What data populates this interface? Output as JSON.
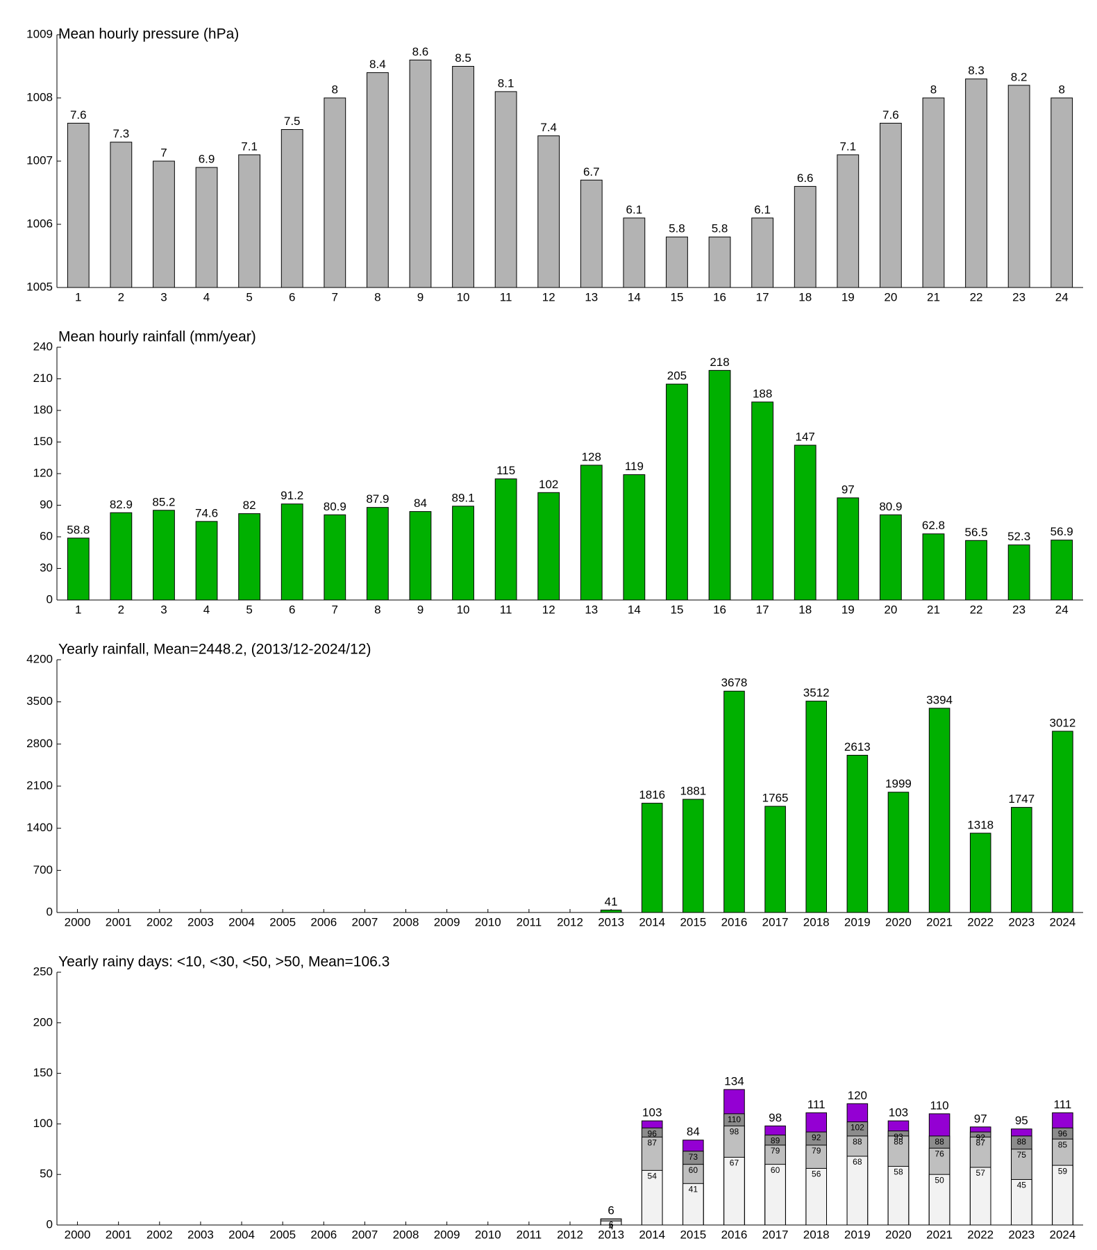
{
  "chart_data": [
    {
      "type": "bar",
      "title": "Mean hourly pressure (hPa)",
      "categories": [
        "1",
        "2",
        "3",
        "4",
        "5",
        "6",
        "7",
        "8",
        "9",
        "10",
        "11",
        "12",
        "13",
        "14",
        "15",
        "16",
        "17",
        "18",
        "19",
        "20",
        "21",
        "22",
        "23",
        "24"
      ],
      "values": [
        1007.6,
        1007.3,
        1007,
        1006.9,
        1007.1,
        1007.5,
        1008,
        1008.4,
        1008.6,
        1008.5,
        1008.1,
        1007.4,
        1006.7,
        1006.1,
        1005.8,
        1005.8,
        1006.1,
        1006.6,
        1007.1,
        1007.6,
        1008,
        1008.3,
        1008.2,
        1008
      ],
      "value_labels": [
        "7.6",
        "7.3",
        "7",
        "6.9",
        "7.1",
        "7.5",
        "8",
        "8.4",
        "8.6",
        "8.5",
        "8.1",
        "7.4",
        "6.7",
        "6.1",
        "5.8",
        "5.8",
        "6.1",
        "6.6",
        "7.1",
        "7.6",
        "8",
        "8.3",
        "8.2",
        "8"
      ],
      "color": "#b3b3b3",
      "ylim": [
        1005,
        1009
      ],
      "yticks": [
        1005,
        1006,
        1007,
        1008,
        1009
      ]
    },
    {
      "type": "bar",
      "title": "Mean hourly rainfall (mm/year)",
      "categories": [
        "1",
        "2",
        "3",
        "4",
        "5",
        "6",
        "7",
        "8",
        "9",
        "10",
        "11",
        "12",
        "13",
        "14",
        "15",
        "16",
        "17",
        "18",
        "19",
        "20",
        "21",
        "22",
        "23",
        "24"
      ],
      "values": [
        58.8,
        82.9,
        85.2,
        74.6,
        82,
        91.2,
        80.9,
        87.9,
        84,
        89.1,
        115,
        102,
        128,
        119,
        205,
        218,
        188,
        147,
        97,
        80.9,
        62.8,
        56.5,
        52.3,
        56.9
      ],
      "color": "#00b000",
      "ylim": [
        0,
        240
      ],
      "yticks": [
        0,
        30,
        60,
        90,
        120,
        150,
        180,
        210,
        240
      ]
    },
    {
      "type": "bar",
      "title": "Yearly rainfall, Mean=2448.2, (2013/12-2024/12)",
      "categories": [
        "2000",
        "2001",
        "2002",
        "2003",
        "2004",
        "2005",
        "2006",
        "2007",
        "2008",
        "2009",
        "2010",
        "2011",
        "2012",
        "2013",
        "2014",
        "2015",
        "2016",
        "2017",
        "2018",
        "2019",
        "2020",
        "2021",
        "2022",
        "2023",
        "2024"
      ],
      "values": [
        null,
        null,
        null,
        null,
        null,
        null,
        null,
        null,
        null,
        null,
        null,
        null,
        null,
        41,
        1816,
        1881,
        3678,
        1765,
        3512,
        2613,
        1999,
        3394,
        1318,
        1747,
        3012
      ],
      "color": "#00b000",
      "ylim": [
        0,
        4200
      ],
      "yticks": [
        0,
        700,
        1400,
        2100,
        2800,
        3500,
        4200
      ]
    },
    {
      "type": "bar",
      "title": "Yearly rainy days: <10, <30, <50, >50, Mean=106.3",
      "categories": [
        "2000",
        "2001",
        "2002",
        "2003",
        "2004",
        "2005",
        "2006",
        "2007",
        "2008",
        "2009",
        "2010",
        "2011",
        "2012",
        "2013",
        "2014",
        "2015",
        "2016",
        "2017",
        "2018",
        "2019",
        "2020",
        "2021",
        "2022",
        "2023",
        "2024"
      ],
      "series": [
        {
          "color": "#f2f2f2",
          "values": [
            null,
            null,
            null,
            null,
            null,
            null,
            null,
            null,
            null,
            null,
            null,
            null,
            null,
            4,
            54,
            41,
            67,
            60,
            56,
            68,
            58,
            50,
            57,
            45,
            59
          ]
        },
        {
          "color": "#bfbfbf",
          "values": [
            null,
            null,
            null,
            null,
            null,
            null,
            null,
            null,
            null,
            null,
            null,
            null,
            null,
            6,
            87,
            60,
            98,
            79,
            79,
            88,
            88,
            76,
            87,
            75,
            85
          ]
        },
        {
          "color": "#8c8c8c",
          "values": [
            null,
            null,
            null,
            null,
            null,
            null,
            null,
            null,
            null,
            null,
            null,
            null,
            null,
            6,
            96,
            73,
            110,
            89,
            92,
            102,
            93,
            88,
            92,
            88,
            96
          ]
        },
        {
          "color": "#9400d3",
          "values": [
            null,
            null,
            null,
            null,
            null,
            null,
            null,
            null,
            null,
            null,
            null,
            null,
            null,
            6,
            103,
            84,
            134,
            98,
            111,
            120,
            103,
            110,
            97,
            95,
            111
          ]
        }
      ],
      "ylim": [
        0,
        250
      ],
      "yticks": [
        0,
        50,
        100,
        150,
        200,
        250
      ]
    }
  ]
}
